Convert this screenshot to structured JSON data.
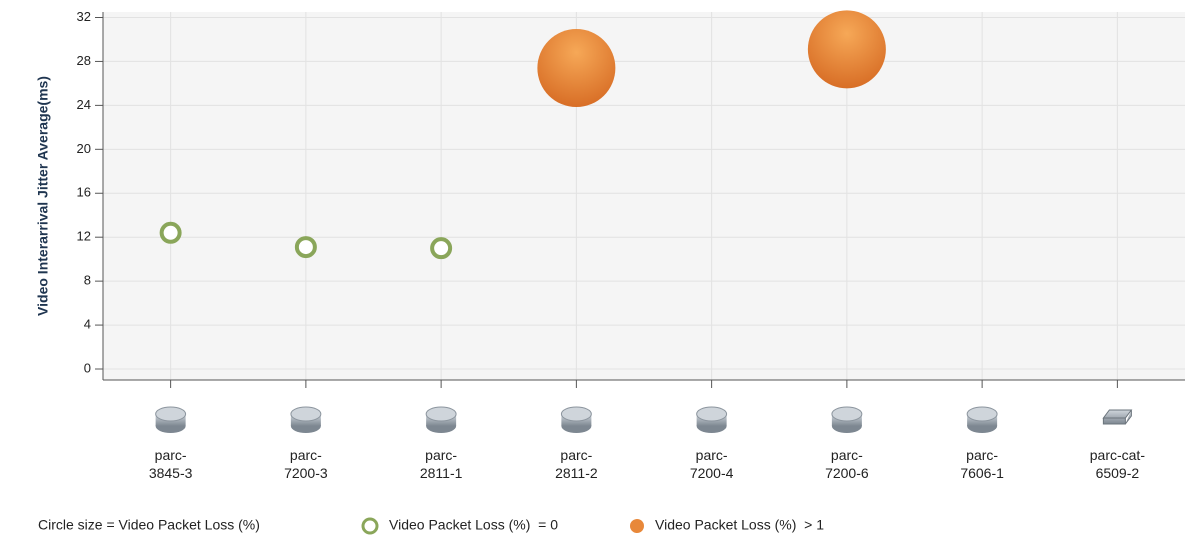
{
  "chart_data": {
    "type": "bubble",
    "y_label": "Video Interarrival Jitter Average(ms)",
    "categories": [
      "parc-3845-3",
      "parc-7200-3",
      "parc-2811-1",
      "parc-2811-2",
      "parc-7200-4",
      "parc-7200-6",
      "parc-7606-1",
      "parc-cat-6509-2"
    ],
    "values": [
      12.4,
      11.1,
      11.0,
      27.4,
      null,
      29.1,
      null,
      null
    ],
    "sizes": [
      0,
      0,
      0,
      5,
      null,
      5,
      null,
      null
    ],
    "ylim": [
      -1,
      32.5
    ],
    "yticks": [
      0,
      4,
      8,
      12,
      16,
      20,
      24,
      28,
      32
    ],
    "grid": true,
    "size_label": "Circle size = Video Packet Loss (%)",
    "legend": [
      {
        "name": "Video Packet Loss (%)  = 0",
        "color": "#8aa65a"
      },
      {
        "name": "Video Packet Loss (%)  > 1",
        "color": "#e8883a"
      }
    ]
  }
}
